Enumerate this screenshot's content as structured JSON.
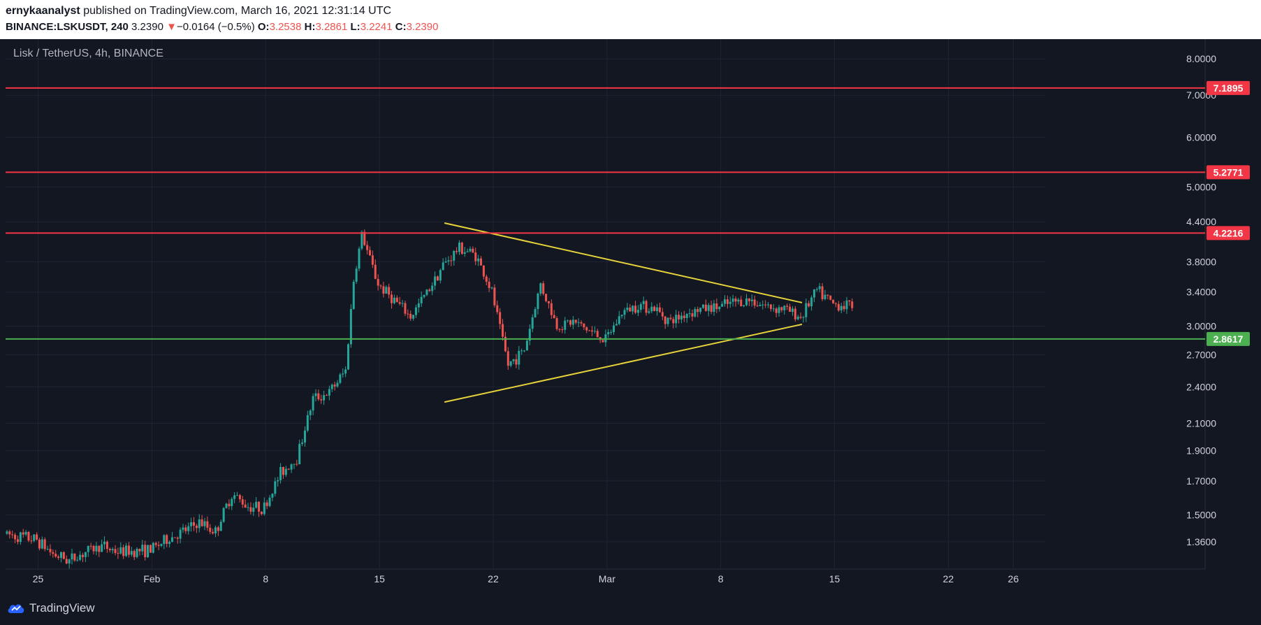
{
  "header": {
    "author": "ernykaanalyst",
    "published_text": "published on TradingView.com, March 16, 2021 12:31:14 UTC",
    "symbol": "BINANCE:LSKUSDT, 240",
    "last_price": "3.2390",
    "change_arrow": "▼",
    "change": "−0.0164 (−0.5%)",
    "o_label": "O:",
    "o_value": "3.2538",
    "h_label": "H:",
    "h_value": "3.2861",
    "l_label": "L:",
    "l_value": "3.2241",
    "c_label": "C:",
    "c_value": "3.2390"
  },
  "footer": {
    "brand": "TradingView"
  },
  "colors": {
    "background": "#131722",
    "grid": "#1f2433",
    "up": "#26a69a",
    "down": "#ef5350",
    "resistance": "#f23645",
    "support": "#4caf50",
    "trendline": "#e6d23a",
    "axis_text": "#d1d4dc"
  },
  "chart_data": {
    "type": "candlestick",
    "title": "Lisk / TetherUS, 4h, BINANCE",
    "y_scale": "log",
    "ylim": [
      1.23,
      8.6
    ],
    "xlim": [
      "2021-01-23",
      "2021-03-28"
    ],
    "x_ticks": [
      {
        "date": "2021-01-25",
        "label": "25"
      },
      {
        "date": "2021-02-01",
        "label": "Feb"
      },
      {
        "date": "2021-02-08",
        "label": "8"
      },
      {
        "date": "2021-02-15",
        "label": "15"
      },
      {
        "date": "2021-02-22",
        "label": "22"
      },
      {
        "date": "2021-03-01",
        "label": "Mar"
      },
      {
        "date": "2021-03-08",
        "label": "8"
      },
      {
        "date": "2021-03-15",
        "label": "15"
      },
      {
        "date": "2021-03-22",
        "label": "22"
      },
      {
        "date": "2021-03-26",
        "label": "26"
      }
    ],
    "y_ticks": [
      "8.0000",
      "7.0000",
      "6.0000",
      "5.0000",
      "4.4000",
      "3.8000",
      "3.4000",
      "3.0000",
      "2.7000",
      "2.4000",
      "2.1000",
      "1.9000",
      "1.7000",
      "1.5000",
      "1.3600"
    ],
    "horizontal_levels": [
      {
        "value": "7.1895",
        "kind": "resistance"
      },
      {
        "value": "5.2771",
        "kind": "resistance"
      },
      {
        "value": "4.2216",
        "kind": "resistance"
      },
      {
        "value": "2.8617",
        "kind": "support"
      }
    ],
    "trendlines": [
      {
        "from": {
          "date": "2021-02-19",
          "price": 4.38
        },
        "to": {
          "date": "2021-03-13",
          "price": 3.27
        }
      },
      {
        "from": {
          "date": "2021-02-19",
          "price": 2.27
        },
        "to": {
          "date": "2021-03-13",
          "price": 3.02
        }
      }
    ],
    "price_path": [
      [
        "2021-01-23",
        1.4
      ],
      [
        "2021-01-25",
        1.37
      ],
      [
        "2021-01-26",
        1.3
      ],
      [
        "2021-01-27",
        1.27
      ],
      [
        "2021-01-28",
        1.31
      ],
      [
        "2021-01-29",
        1.34
      ],
      [
        "2021-01-30",
        1.31
      ],
      [
        "2021-02-01",
        1.32
      ],
      [
        "2021-02-02",
        1.37
      ],
      [
        "2021-02-03",
        1.41
      ],
      [
        "2021-02-04",
        1.46
      ],
      [
        "2021-02-05",
        1.41
      ],
      [
        "2021-02-06",
        1.62
      ],
      [
        "2021-02-07",
        1.55
      ],
      [
        "2021-02-08",
        1.54
      ],
      [
        "2021-02-09",
        1.75
      ],
      [
        "2021-02-10",
        1.85
      ],
      [
        "2021-02-11",
        2.3
      ],
      [
        "2021-02-12",
        2.35
      ],
      [
        "2021-02-13",
        2.55
      ],
      [
        "2021-02-13.5",
        3.55
      ],
      [
        "2021-02-14",
        4.2
      ],
      [
        "2021-02-15",
        3.5
      ],
      [
        "2021-02-16",
        3.3
      ],
      [
        "2021-02-17",
        3.1
      ],
      [
        "2021-02-18",
        3.4
      ],
      [
        "2021-02-19",
        3.75
      ],
      [
        "2021-02-20",
        4.0
      ],
      [
        "2021-02-21",
        3.9
      ],
      [
        "2021-02-22",
        3.4
      ],
      [
        "2021-02-23",
        2.6
      ],
      [
        "2021-02-24",
        2.75
      ],
      [
        "2021-02-25",
        3.5
      ],
      [
        "2021-02-26",
        3.0
      ],
      [
        "2021-02-27",
        3.05
      ],
      [
        "2021-02-28",
        2.95
      ],
      [
        "2021-03-01",
        2.85
      ],
      [
        "2021-03-02",
        3.15
      ],
      [
        "2021-03-03",
        3.25
      ],
      [
        "2021-03-04",
        3.2
      ],
      [
        "2021-03-05",
        3.05
      ],
      [
        "2021-03-06",
        3.15
      ],
      [
        "2021-03-07",
        3.2
      ],
      [
        "2021-03-08",
        3.22
      ],
      [
        "2021-03-09",
        3.28
      ],
      [
        "2021-03-10",
        3.3
      ],
      [
        "2021-03-11",
        3.22
      ],
      [
        "2021-03-12",
        3.2
      ],
      [
        "2021-03-13",
        3.1
      ],
      [
        "2021-03-14",
        3.42
      ],
      [
        "2021-03-15",
        3.25
      ],
      [
        "2021-03-16",
        3.24
      ]
    ]
  }
}
